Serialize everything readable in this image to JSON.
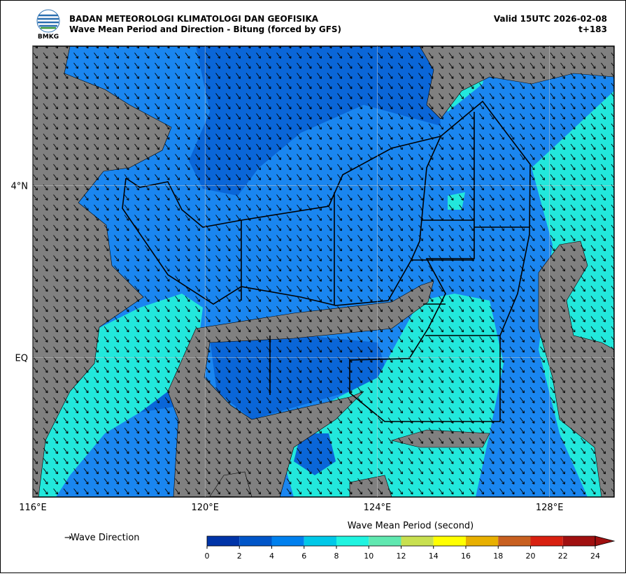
{
  "header": {
    "logo_text": "BMKG",
    "org": "BADAN METEOROLOGI KLIMATOLOGI DAN GEOFISIKA",
    "subtitle": "Wave Mean Period and Direction - Bitung (forced by GFS)",
    "valid": "Valid 15UTC 2026-02-08",
    "lead": "t+183"
  },
  "chart_data": {
    "type": "map",
    "xlim": [
      116,
      129.5
    ],
    "ylim": [
      -3.25,
      7.25
    ],
    "xticks": [
      {
        "value": 116,
        "label": "116°E"
      },
      {
        "value": 120,
        "label": "120°E"
      },
      {
        "value": 124,
        "label": "124°E"
      },
      {
        "value": 128,
        "label": "128°E"
      }
    ],
    "yticks": [
      {
        "value": 4,
        "label": "4°N"
      },
      {
        "value": 0,
        "label": "EQ"
      }
    ],
    "grid": true,
    "legend": {
      "label": "Wave Direction"
    },
    "colorbar": {
      "title": "Wave Mean Period (second)",
      "bins": [
        0,
        2,
        4,
        6,
        8,
        10,
        12,
        14,
        16,
        18,
        20,
        22,
        24
      ],
      "colors": [
        "#0034a8",
        "#0055c8",
        "#0080ee",
        "#00c8e8",
        "#20f4e0",
        "#60e8b0",
        "#c8e050",
        "#ffff00",
        "#e8b000",
        "#c86020",
        "#d82010",
        "#a01010"
      ],
      "extend_color": "#a01010"
    }
  }
}
